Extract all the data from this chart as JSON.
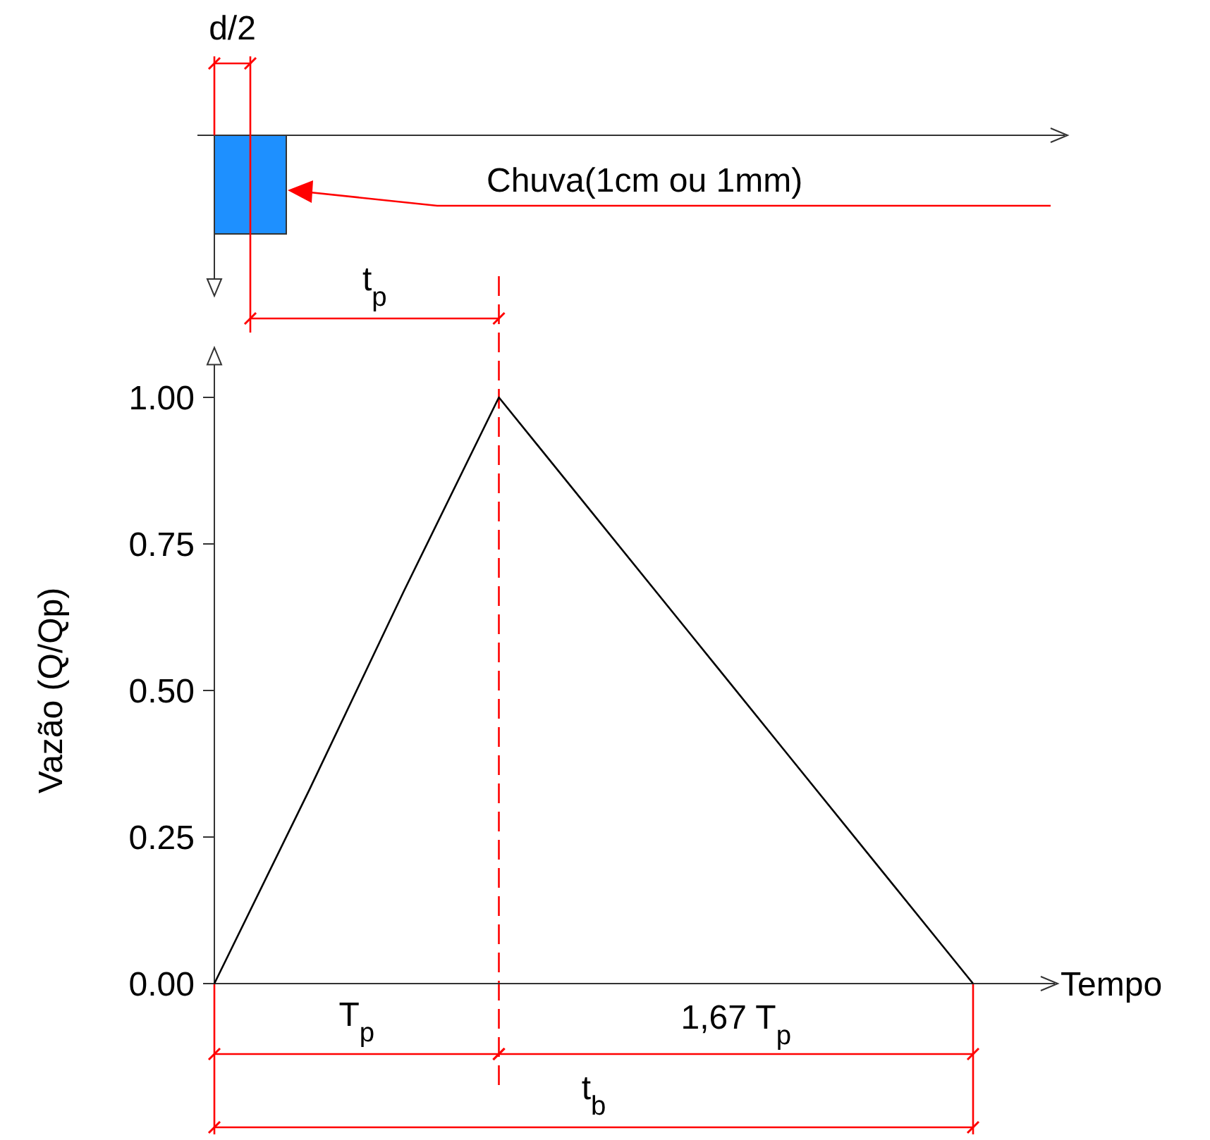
{
  "chart_data": {
    "type": "line",
    "xlabel": "Tempo",
    "ylabel": "Vazão (Q/Qp)",
    "categories": [
      null,
      null,
      null,
      null,
      null,
      null,
      null,
      null,
      null
    ],
    "series": [
      {
        "color": "#000000",
        "values": [
          0,
          0.33,
          0.67,
          1,
          0.8,
          0.6,
          0.4,
          0.2,
          0
        ]
      }
    ],
    "ylim": [
      0,
      1.08
    ],
    "yticks": [
      {
        "value": 0,
        "label": "0.00"
      },
      {
        "value": 0.25,
        "label": "0.25"
      },
      {
        "value": 0.5,
        "label": "0.50"
      },
      {
        "value": 0.75,
        "label": "0.75"
      },
      {
        "value": 1,
        "label": "1.00"
      }
    ],
    "tick_labels": "y",
    "grid": false,
    "line_style": "solid",
    "annotations": [
      "d/2",
      "t$_{p}$",
      "Chuva(1cm ou 1mm)",
      "T$_{p}$",
      "1,67 T$_{p}$",
      "t$_{b}$"
    ]
  }
}
